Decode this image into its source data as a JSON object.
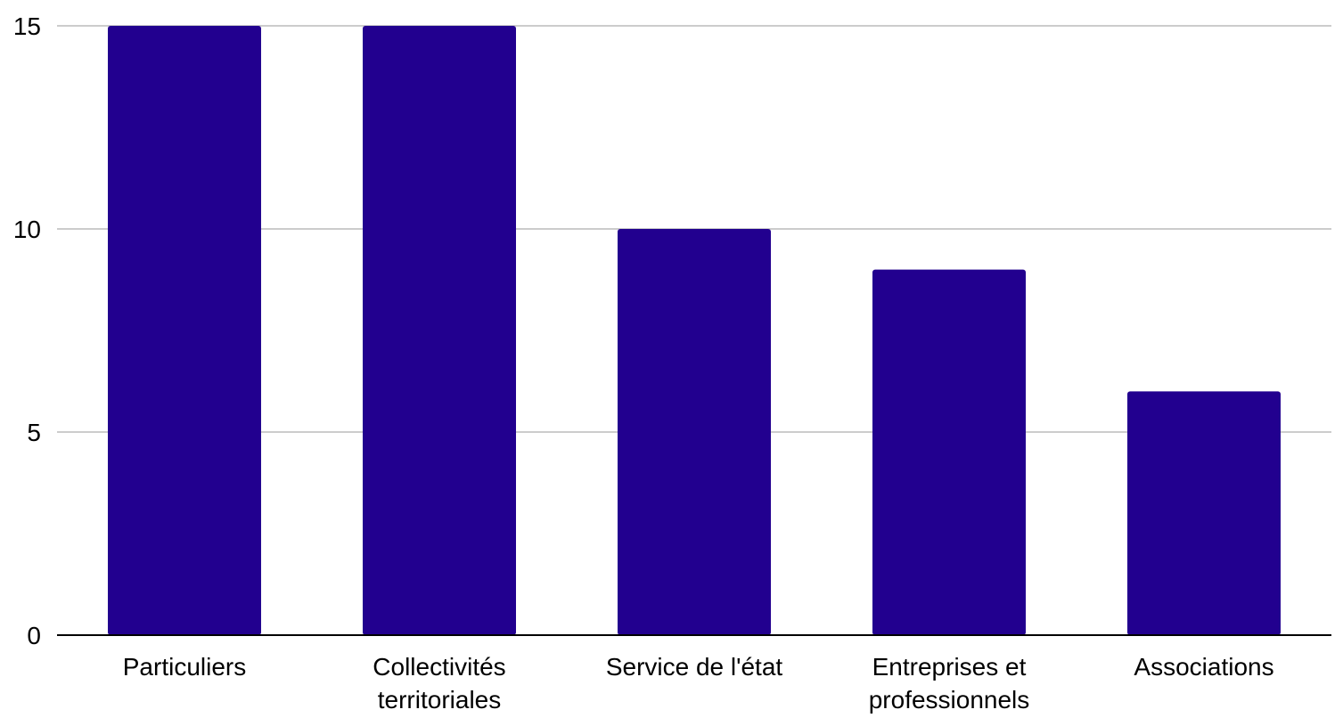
{
  "colors": {
    "bar": "#22008f",
    "grid": "#cccccc",
    "axis": "#000000",
    "background": "#ffffff"
  },
  "chart_data": {
    "type": "bar",
    "title": "",
    "xlabel": "",
    "ylabel": "",
    "categories": [
      [
        "Particuliers"
      ],
      [
        "Collectivités",
        "territoriales"
      ],
      [
        "Service de l'état"
      ],
      [
        "Entreprises et",
        "professionnels"
      ],
      [
        "Associations"
      ]
    ],
    "values": [
      15,
      15,
      10,
      9,
      6
    ],
    "ylim": [
      0,
      15
    ],
    "yticks": [
      0,
      5,
      10,
      15
    ],
    "grid": true,
    "legend": "none"
  }
}
